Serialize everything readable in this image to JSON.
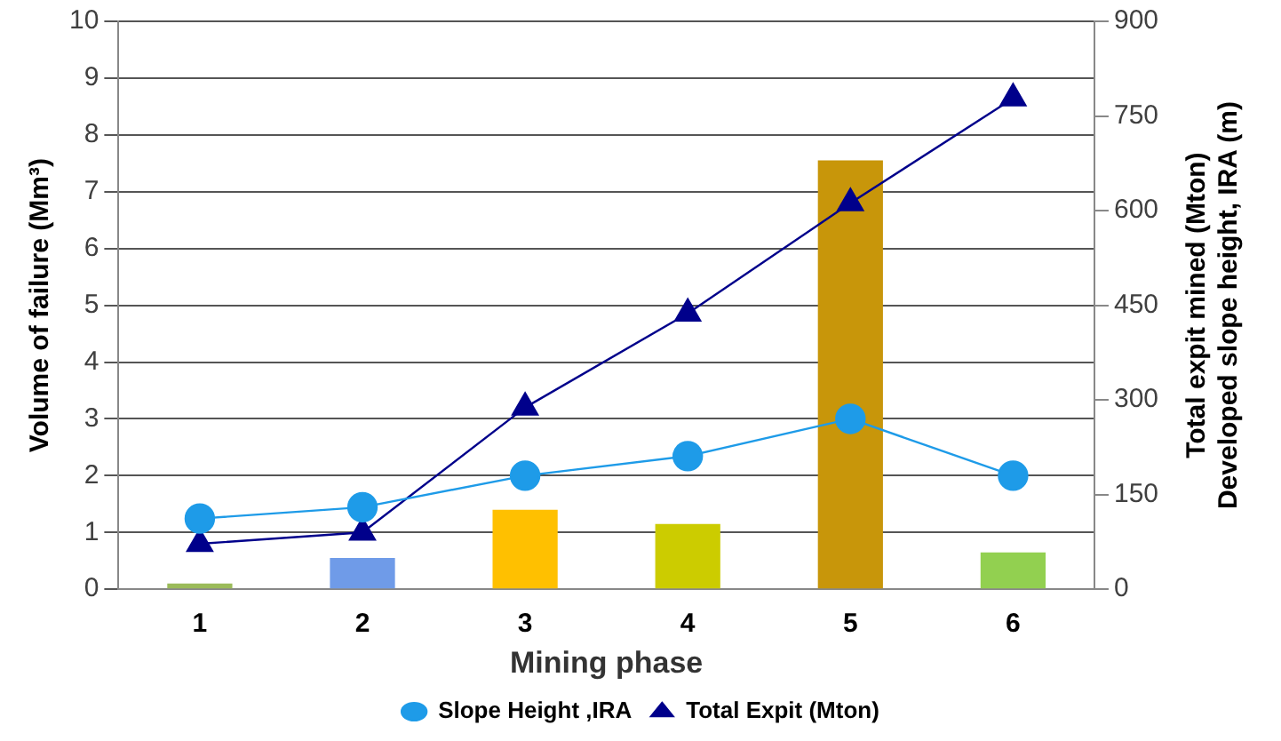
{
  "chart_data": {
    "type": "bar",
    "xlabel": "Mining phase",
    "ylabel": "Volume of failure (Mm³)",
    "y2label": "Total expit mined (Mton)\nDeveloped slope height, IRA (m)",
    "categories": [
      "1",
      "2",
      "3",
      "4",
      "5",
      "6"
    ],
    "series": [
      {
        "colors": [
          "#9bbb59",
          "#6f9be8",
          "#ffc000",
          "#cccc00",
          "#c8960a",
          "#92d050"
        ],
        "values": [
          0.1,
          0.55,
          1.4,
          1.15,
          7.55,
          0.65
        ]
      },
      {
        "type": "line",
        "name": "Slope Height ,IRA",
        "color": "#1e9be8",
        "axis": "y2",
        "marker": "circle",
        "values": [
          112,
          130,
          180,
          211,
          270,
          180
        ]
      },
      {
        "type": "line",
        "name": "Total Expit (Mton)",
        "color": "#00008b",
        "axis": "y2",
        "marker": "triangle",
        "values": [
          72,
          90,
          288,
          437,
          612,
          778
        ]
      }
    ],
    "ylim": [
      0,
      10
    ],
    "yticks": [
      0,
      1,
      2,
      3,
      4,
      5,
      6,
      7,
      8,
      9,
      10
    ],
    "y2lim": [
      0,
      900
    ],
    "y2ticks": [
      0,
      150,
      300,
      450,
      600,
      750,
      900
    ],
    "grid": "y",
    "legend": "bottom"
  }
}
